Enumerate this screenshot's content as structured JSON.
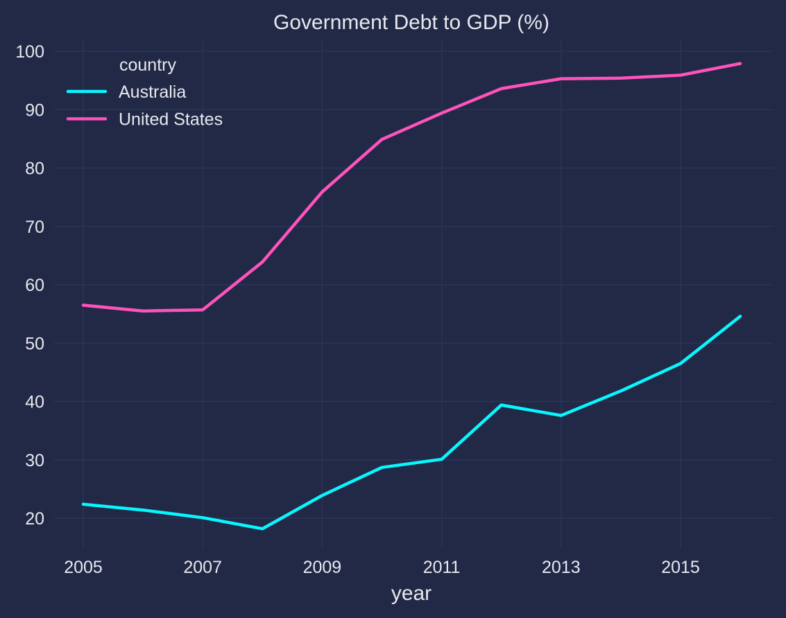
{
  "chart_data": {
    "type": "line",
    "title": "Government Debt to GDP (%)",
    "xlabel": "year",
    "ylabel": "",
    "x": [
      2005,
      2006,
      2007,
      2008,
      2009,
      2010,
      2011,
      2012,
      2013,
      2014,
      2015,
      2016
    ],
    "x_ticks": [
      2005,
      2007,
      2009,
      2011,
      2013,
      2015
    ],
    "y_ticks": [
      20,
      30,
      40,
      50,
      60,
      70,
      80,
      90,
      100
    ],
    "xlim": [
      2004.55,
      2016.55
    ],
    "ylim": [
      15,
      102
    ],
    "grid": true,
    "legend": {
      "title": "country",
      "placement": "top-left"
    },
    "series": [
      {
        "name": "Australia",
        "color": "#08F7FE",
        "values": [
          22.4,
          21.4,
          20.1,
          18.2,
          23.9,
          28.7,
          30.1,
          39.4,
          37.6,
          41.8,
          46.5,
          54.6
        ]
      },
      {
        "name": "United States",
        "color": "#FE53BB",
        "values": [
          56.5,
          55.5,
          55.7,
          63.9,
          75.9,
          84.9,
          89.4,
          93.6,
          95.3,
          95.4,
          95.9,
          97.9
        ]
      }
    ],
    "colors": {
      "background": "#212946",
      "grid": "#2A3459",
      "text": "#E8E9EE"
    }
  }
}
